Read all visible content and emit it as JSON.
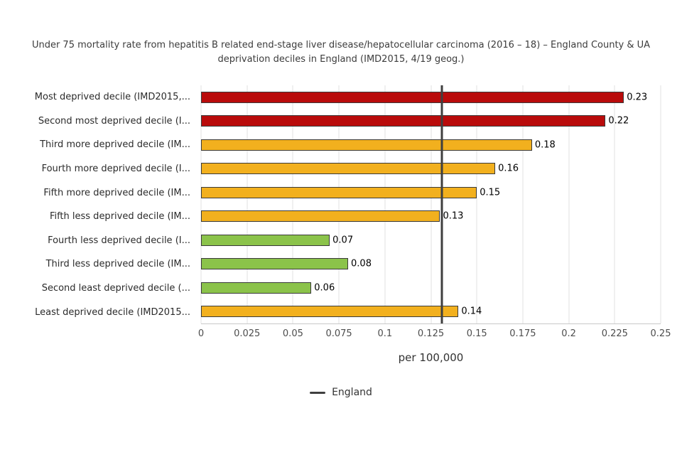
{
  "title": {
    "text": "Under 75 mortality rate from hepatitis B related end-stage liver disease/hepatocellular carcinoma (2016 – 18) – England County & UA deprivation deciles in England (IMD2015, 4/19 geog.)"
  },
  "chart_data": {
    "type": "bar",
    "orientation": "horizontal",
    "title": "Under 75 mortality rate from hepatitis B related end-stage liver disease/hepatocellular carcinoma (2016 – 18) – England County & UA deprivation deciles in England (IMD2015, 4/19 geog.)",
    "categories": [
      "Most deprived decile (IMD2015,...",
      "Second most deprived decile (I...",
      "Third more deprived decile (IM...",
      "Fourth more deprived decile (I...",
      "Fifth more deprived decile (IM...",
      "Fifth less deprived decile (IM...",
      "Fourth less deprived decile (I...",
      "Third less deprived decile (IM...",
      "Second least deprived decile (...",
      "Least deprived decile (IMD2015..."
    ],
    "values": [
      0.23,
      0.22,
      0.18,
      0.16,
      0.15,
      0.13,
      0.07,
      0.08,
      0.06,
      0.14
    ],
    "value_labels": [
      "0.23",
      "0.22",
      "0.18",
      "0.16",
      "0.15",
      "0.13",
      "0.07",
      "0.08",
      "0.06",
      "0.14"
    ],
    "colors": [
      "#b90b0b",
      "#b90b0b",
      "#f2b01e",
      "#f2b01e",
      "#f2b01e",
      "#f2b01e",
      "#8bc34a",
      "#8bc34a",
      "#8bc34a",
      "#f2b01e"
    ],
    "color_meaning": {
      "#b90b0b": "worse",
      "#f2b01e": "similar",
      "#8bc34a": "better"
    },
    "xlabel": "per 100,000",
    "xlim": [
      0,
      0.25
    ],
    "x_ticks": [
      "0",
      "0.025",
      "0.05",
      "0.075",
      "0.1",
      "0.125",
      "0.15",
      "0.175",
      "0.2",
      "0.225",
      "0.25"
    ],
    "grid": true,
    "benchmark_line": {
      "label": "England",
      "value": 0.131,
      "color": "#3f3f3f"
    },
    "legend": {
      "position": "bottom",
      "entries": [
        {
          "label": "England",
          "marker": "line",
          "color": "#3f3f3f"
        }
      ]
    }
  }
}
